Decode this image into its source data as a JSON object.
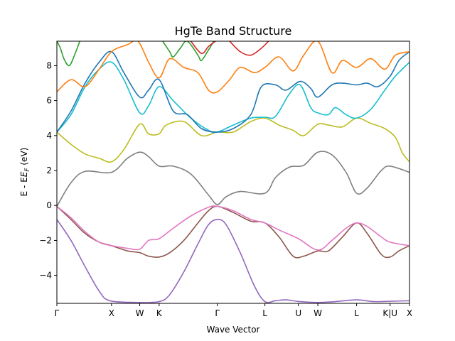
{
  "chart_data": {
    "type": "line",
    "title": "HgTe Band Structure",
    "xlabel": "Wave Vector",
    "ylabel_prefix": "E - E",
    "ylabel_sub": "F",
    "ylabel_suffix": " (eV)",
    "xlim": [
      0,
      1
    ],
    "ylim": [
      -5.6,
      9.4
    ],
    "yticks": [
      -4,
      -2,
      0,
      2,
      4,
      6,
      8
    ],
    "ytick_labels": [
      "−4",
      "−2",
      "0",
      "2",
      "4",
      "6",
      "8"
    ],
    "xticks": [
      {
        "label": "Γ",
        "x": 0.0
      },
      {
        "label": "X",
        "x": 0.155
      },
      {
        "label": "W",
        "x": 0.235
      },
      {
        "label": "K",
        "x": 0.29
      },
      {
        "label": "Γ",
        "x": 0.455
      },
      {
        "label": "L",
        "x": 0.59
      },
      {
        "label": "U",
        "x": 0.685
      },
      {
        "label": "W",
        "x": 0.74
      },
      {
        "label": "L",
        "x": 0.85
      },
      {
        "label": "K|U",
        "x": 0.945
      },
      {
        "label": "X",
        "x": 1.0
      }
    ],
    "series": [
      {
        "color": "#9467bd",
        "points": [
          [
            0,
            -0.8
          ],
          [
            0.04,
            -2.0
          ],
          [
            0.08,
            -3.5
          ],
          [
            0.12,
            -4.9
          ],
          [
            0.15,
            -5.45
          ],
          [
            0.23,
            -5.55
          ],
          [
            0.29,
            -5.5
          ],
          [
            0.32,
            -5.1
          ],
          [
            0.36,
            -3.8
          ],
          [
            0.4,
            -2.2
          ],
          [
            0.43,
            -1.1
          ],
          [
            0.455,
            -0.8
          ],
          [
            0.48,
            -1.1
          ],
          [
            0.52,
            -2.7
          ],
          [
            0.56,
            -4.6
          ],
          [
            0.59,
            -5.5
          ],
          [
            0.62,
            -5.45
          ],
          [
            0.65,
            -5.4
          ],
          [
            0.69,
            -5.5
          ],
          [
            0.74,
            -5.55
          ],
          [
            0.79,
            -5.5
          ],
          [
            0.85,
            -5.4
          ],
          [
            0.9,
            -5.5
          ],
          [
            0.945,
            -5.48
          ],
          [
            1.0,
            -5.45
          ]
        ]
      },
      {
        "color": "#8c564b",
        "points": [
          [
            0,
            -0.05
          ],
          [
            0.04,
            -0.8
          ],
          [
            0.08,
            -1.6
          ],
          [
            0.12,
            -2.1
          ],
          [
            0.155,
            -2.3
          ],
          [
            0.2,
            -2.6
          ],
          [
            0.235,
            -2.7
          ],
          [
            0.26,
            -2.9
          ],
          [
            0.29,
            -2.95
          ],
          [
            0.32,
            -2.7
          ],
          [
            0.36,
            -2.0
          ],
          [
            0.4,
            -1.0
          ],
          [
            0.43,
            -0.3
          ],
          [
            0.455,
            -0.05
          ],
          [
            0.5,
            -0.4
          ],
          [
            0.55,
            -0.9
          ],
          [
            0.59,
            -1.0
          ],
          [
            0.63,
            -1.8
          ],
          [
            0.67,
            -2.9
          ],
          [
            0.7,
            -2.9
          ],
          [
            0.74,
            -2.6
          ],
          [
            0.77,
            -2.6
          ],
          [
            0.81,
            -1.8
          ],
          [
            0.85,
            -1.0
          ],
          [
            0.88,
            -1.6
          ],
          [
            0.92,
            -2.8
          ],
          [
            0.945,
            -2.95
          ],
          [
            0.97,
            -2.6
          ],
          [
            1.0,
            -2.3
          ]
        ]
      },
      {
        "color": "#e377c2",
        "points": [
          [
            0,
            -0.05
          ],
          [
            0.04,
            -0.7
          ],
          [
            0.08,
            -1.5
          ],
          [
            0.12,
            -2.1
          ],
          [
            0.155,
            -2.3
          ],
          [
            0.2,
            -2.45
          ],
          [
            0.235,
            -2.5
          ],
          [
            0.26,
            -2.0
          ],
          [
            0.29,
            -1.9
          ],
          [
            0.33,
            -1.3
          ],
          [
            0.38,
            -0.6
          ],
          [
            0.43,
            -0.1
          ],
          [
            0.455,
            -0.05
          ],
          [
            0.5,
            -0.3
          ],
          [
            0.55,
            -0.8
          ],
          [
            0.59,
            -1.0
          ],
          [
            0.63,
            -1.4
          ],
          [
            0.685,
            -1.9
          ],
          [
            0.74,
            -2.55
          ],
          [
            0.78,
            -2.0
          ],
          [
            0.82,
            -1.3
          ],
          [
            0.85,
            -1.0
          ],
          [
            0.88,
            -1.2
          ],
          [
            0.92,
            -1.8
          ],
          [
            0.945,
            -2.1
          ],
          [
            1.0,
            -2.3
          ]
        ]
      },
      {
        "color": "#7f7f7f",
        "points": [
          [
            0,
            -0.05
          ],
          [
            0.04,
            1.3
          ],
          [
            0.08,
            1.95
          ],
          [
            0.155,
            1.9
          ],
          [
            0.2,
            2.7
          ],
          [
            0.235,
            3.05
          ],
          [
            0.26,
            2.8
          ],
          [
            0.29,
            2.25
          ],
          [
            0.33,
            2.25
          ],
          [
            0.38,
            1.8
          ],
          [
            0.43,
            0.6
          ],
          [
            0.455,
            0.05
          ],
          [
            0.48,
            0.5
          ],
          [
            0.52,
            0.8
          ],
          [
            0.59,
            0.7
          ],
          [
            0.62,
            1.6
          ],
          [
            0.66,
            2.2
          ],
          [
            0.7,
            2.3
          ],
          [
            0.74,
            3.05
          ],
          [
            0.78,
            2.9
          ],
          [
            0.82,
            1.9
          ],
          [
            0.85,
            0.7
          ],
          [
            0.88,
            1.0
          ],
          [
            0.92,
            2.0
          ],
          [
            0.945,
            2.25
          ],
          [
            1.0,
            1.9
          ]
        ]
      },
      {
        "color": "#bcbd22",
        "points": [
          [
            0,
            4.2
          ],
          [
            0.04,
            3.5
          ],
          [
            0.08,
            2.95
          ],
          [
            0.12,
            2.7
          ],
          [
            0.155,
            2.5
          ],
          [
            0.19,
            3.2
          ],
          [
            0.235,
            4.65
          ],
          [
            0.26,
            4.1
          ],
          [
            0.29,
            4.1
          ],
          [
            0.31,
            4.6
          ],
          [
            0.36,
            4.8
          ],
          [
            0.41,
            4.0
          ],
          [
            0.455,
            4.2
          ],
          [
            0.5,
            4.2
          ],
          [
            0.55,
            4.8
          ],
          [
            0.59,
            5.0
          ],
          [
            0.63,
            4.6
          ],
          [
            0.67,
            4.3
          ],
          [
            0.7,
            4.0
          ],
          [
            0.74,
            4.65
          ],
          [
            0.77,
            4.6
          ],
          [
            0.81,
            4.5
          ],
          [
            0.85,
            5.0
          ],
          [
            0.89,
            4.7
          ],
          [
            0.93,
            4.4
          ],
          [
            0.96,
            3.9
          ],
          [
            0.98,
            3.0
          ],
          [
            1.0,
            2.5
          ]
        ]
      },
      {
        "color": "#17becf",
        "points": [
          [
            0,
            4.2
          ],
          [
            0.04,
            5.2
          ],
          [
            0.08,
            6.8
          ],
          [
            0.12,
            7.8
          ],
          [
            0.155,
            8.2
          ],
          [
            0.19,
            7.2
          ],
          [
            0.235,
            5.3
          ],
          [
            0.26,
            5.7
          ],
          [
            0.29,
            6.8
          ],
          [
            0.33,
            6.0
          ],
          [
            0.38,
            5.0
          ],
          [
            0.43,
            4.3
          ],
          [
            0.455,
            4.2
          ],
          [
            0.5,
            4.6
          ],
          [
            0.55,
            5.0
          ],
          [
            0.59,
            5.05
          ],
          [
            0.62,
            5.1
          ],
          [
            0.66,
            6.4
          ],
          [
            0.69,
            6.9
          ],
          [
            0.72,
            5.6
          ],
          [
            0.74,
            5.3
          ],
          [
            0.77,
            5.2
          ],
          [
            0.79,
            5.6
          ],
          [
            0.82,
            5.2
          ],
          [
            0.85,
            5.0
          ],
          [
            0.89,
            5.5
          ],
          [
            0.93,
            6.6
          ],
          [
            0.96,
            7.4
          ],
          [
            1.0,
            8.2
          ]
        ]
      },
      {
        "color": "#1f77b4",
        "points": [
          [
            0,
            4.2
          ],
          [
            0.04,
            5.4
          ],
          [
            0.08,
            7.0
          ],
          [
            0.12,
            8.2
          ],
          [
            0.155,
            8.8
          ],
          [
            0.19,
            7.6
          ],
          [
            0.235,
            6.2
          ],
          [
            0.26,
            6.6
          ],
          [
            0.29,
            7.2
          ],
          [
            0.33,
            5.4
          ],
          [
            0.37,
            5.2
          ],
          [
            0.41,
            4.4
          ],
          [
            0.455,
            4.2
          ],
          [
            0.5,
            4.4
          ],
          [
            0.55,
            5.2
          ],
          [
            0.58,
            6.8
          ],
          [
            0.62,
            6.9
          ],
          [
            0.65,
            6.6
          ],
          [
            0.69,
            7.1
          ],
          [
            0.72,
            6.7
          ],
          [
            0.74,
            6.2
          ],
          [
            0.78,
            6.9
          ],
          [
            0.81,
            7.0
          ],
          [
            0.85,
            6.9
          ],
          [
            0.88,
            7.0
          ],
          [
            0.91,
            6.8
          ],
          [
            0.945,
            7.4
          ],
          [
            0.97,
            8.3
          ],
          [
            1.0,
            8.8
          ]
        ]
      },
      {
        "color": "#ff7f0e",
        "points": [
          [
            0,
            6.5
          ],
          [
            0.04,
            7.2
          ],
          [
            0.08,
            6.8
          ],
          [
            0.12,
            7.8
          ],
          [
            0.155,
            8.8
          ],
          [
            0.2,
            9.2
          ],
          [
            0.23,
            9.4
          ],
          [
            0.26,
            8.2
          ],
          [
            0.29,
            7.3
          ],
          [
            0.32,
            8.4
          ],
          [
            0.36,
            7.9
          ],
          [
            0.4,
            7.6
          ],
          [
            0.43,
            6.6
          ],
          [
            0.455,
            6.5
          ],
          [
            0.49,
            7.2
          ],
          [
            0.52,
            7.9
          ],
          [
            0.56,
            7.6
          ],
          [
            0.59,
            7.9
          ],
          [
            0.63,
            8.5
          ],
          [
            0.67,
            7.7
          ],
          [
            0.7,
            8.6
          ],
          [
            0.74,
            9.4
          ],
          [
            0.78,
            7.6
          ],
          [
            0.81,
            8.3
          ],
          [
            0.85,
            7.9
          ],
          [
            0.89,
            8.4
          ],
          [
            0.93,
            7.8
          ],
          [
            0.96,
            8.6
          ],
          [
            1.0,
            8.8
          ]
        ]
      },
      {
        "color": "#2ca02c",
        "points": [
          [
            0,
            9.4
          ],
          [
            0.01,
            9.0
          ],
          [
            0.02,
            8.4
          ],
          [
            0.035,
            8.0
          ],
          [
            0.05,
            8.6
          ],
          [
            0.065,
            9.4
          ]
        ],
        "points2": [
          [
            0.3,
            9.4
          ],
          [
            0.32,
            8.8
          ],
          [
            0.33,
            8.5
          ],
          [
            0.35,
            9.0
          ],
          [
            0.37,
            9.4
          ],
          [
            0.4,
            8.6
          ],
          [
            0.41,
            8.3
          ],
          [
            0.43,
            8.9
          ],
          [
            0.445,
            9.4
          ]
        ]
      },
      {
        "color": "#d62728",
        "points": [
          [
            0.38,
            9.4
          ],
          [
            0.41,
            8.7
          ],
          [
            0.43,
            9.1
          ],
          [
            0.45,
            9.4
          ]
        ],
        "points2": [
          [
            0.49,
            9.4
          ],
          [
            0.52,
            8.8
          ],
          [
            0.55,
            8.6
          ],
          [
            0.58,
            9.0
          ],
          [
            0.6,
            9.4
          ]
        ]
      }
    ]
  }
}
